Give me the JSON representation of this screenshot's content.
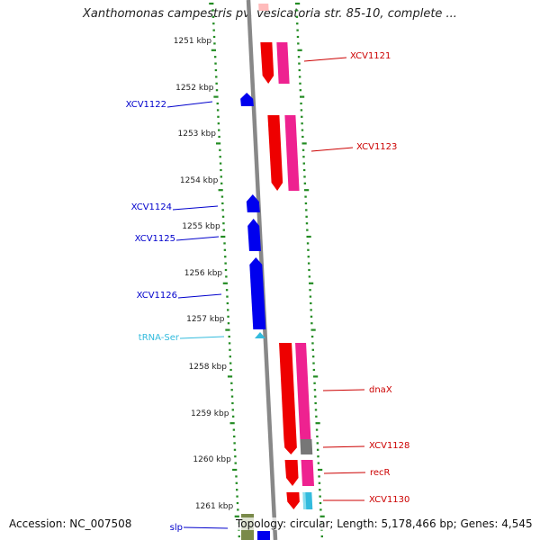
{
  "title": "Xanthomonas campestris pv. vesicatoria str. 85-10, complete ...",
  "kbp_labels": [
    "1251 kbp",
    "1252 kbp",
    "1253 kbp",
    "1254 kbp",
    "1255 kbp",
    "1256 kbp",
    "1257 kbp",
    "1258 kbp",
    "1259 kbp",
    "1260 kbp",
    "1261 kbp"
  ],
  "genes": [
    {
      "name": "XCV1121",
      "strand": "forward",
      "color": "#cc0000"
    },
    {
      "name": "XCV1122",
      "strand": "reverse",
      "color": "#0000cc"
    },
    {
      "name": "XCV1123",
      "strand": "forward",
      "color": "#cc0000"
    },
    {
      "name": "XCV1124",
      "strand": "reverse",
      "color": "#0000cc"
    },
    {
      "name": "XCV1125",
      "strand": "reverse",
      "color": "#0000cc"
    },
    {
      "name": "XCV1126",
      "strand": "reverse",
      "color": "#0000cc"
    },
    {
      "name": "tRNA-Ser",
      "strand": "reverse",
      "color": "#33bbdd"
    },
    {
      "name": "dnaX",
      "strand": "forward",
      "color": "#cc0000"
    },
    {
      "name": "XCV1128",
      "strand": "forward",
      "color": "#cc0000"
    },
    {
      "name": "recR",
      "strand": "forward",
      "color": "#cc0000"
    },
    {
      "name": "XCV1130",
      "strand": "forward",
      "color": "#cc0000"
    },
    {
      "name": "slp",
      "strand": "reverse",
      "color": "#0000cc"
    }
  ],
  "footer": {
    "accession": "Accession: NC_007508",
    "summary": "Topology: circular; Length: 5,178,466 bp; Genes: 4,545"
  },
  "colors": {
    "forward_cds": "#ee0000",
    "forward_feature": "#ee2290",
    "reverse_cds": "#0000ee",
    "trna": "#33bbdd",
    "tick": "#228b22",
    "backbone": "#888888"
  }
}
